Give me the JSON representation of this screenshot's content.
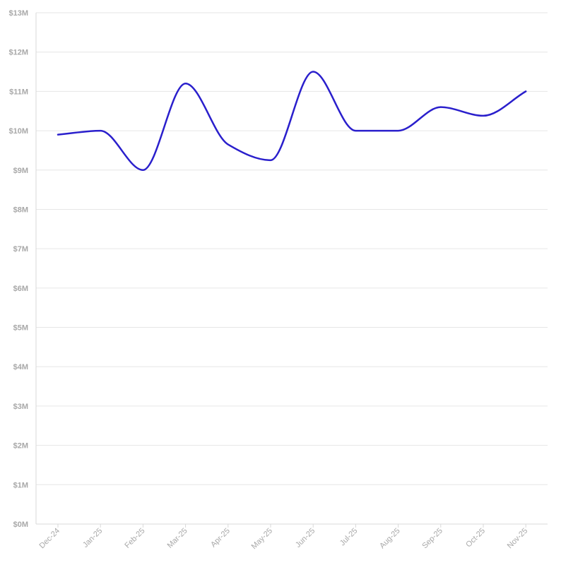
{
  "chart_data": {
    "type": "line",
    "title": "",
    "xlabel": "",
    "ylabel": "",
    "categories": [
      "Dec-24",
      "Jan-25",
      "Feb-25",
      "Mar-25",
      "Apr-25",
      "May-25",
      "Jun-25",
      "Jul-25",
      "Aug-25",
      "Sep-25",
      "Oct-25",
      "Nov-25"
    ],
    "series": [
      {
        "color": "#2a1fcc",
        "values": [
          9.9,
          10.0,
          9.0,
          11.2,
          9.65,
          9.25,
          11.5,
          10.0,
          10.0,
          10.6,
          10.38,
          11.0
        ]
      }
    ],
    "y_ticks": [
      0,
      1,
      2,
      3,
      4,
      5,
      6,
      7,
      8,
      9,
      10,
      11,
      12,
      13
    ],
    "y_tick_labels": [
      "$0M",
      "$1M",
      "$2M",
      "$3M",
      "$4M",
      "$5M",
      "$6M",
      "$7M",
      "$8M",
      "$9M",
      "$10M",
      "$11M",
      "$12M",
      "$13M"
    ],
    "ylim": [
      0,
      13
    ],
    "grid": true,
    "legend": "none"
  }
}
